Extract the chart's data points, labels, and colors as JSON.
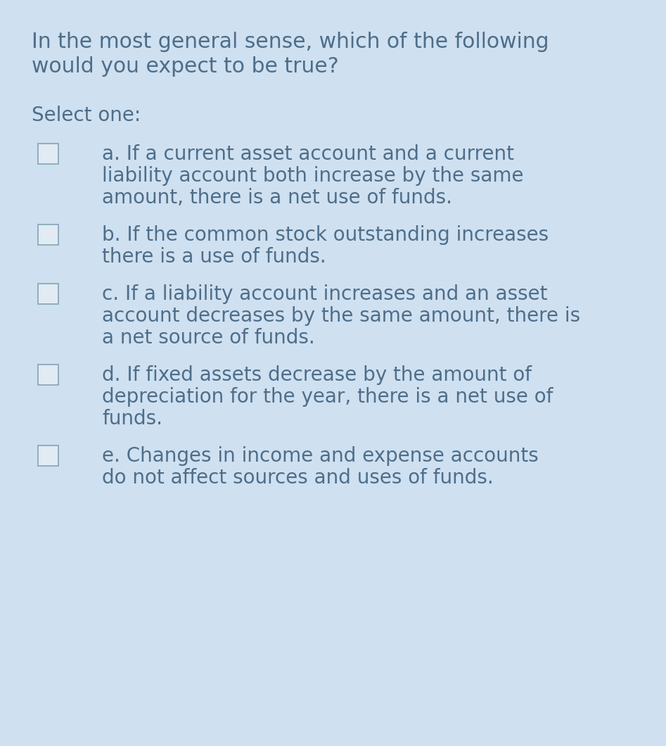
{
  "background_color": "#cfe0f0",
  "text_color": "#4d6e8a",
  "title_line1": "In the most general sense, which of the following",
  "title_line2": "would you expect to be true?",
  "select_label": "Select one:",
  "options": [
    {
      "lines": [
        "a. If a current asset account and a current",
        "liability account both increase by the same",
        "amount, there is a net use of funds."
      ]
    },
    {
      "lines": [
        "b. If the common stock outstanding increases",
        "there is a use of funds."
      ]
    },
    {
      "lines": [
        "c. If a liability account increases and an asset",
        "account decreases by the same amount, there is",
        "a net source of funds."
      ]
    },
    {
      "lines": [
        "d. If fixed assets decrease by the amount of",
        "depreciation for the year, there is a net use of",
        "funds."
      ]
    },
    {
      "lines": [
        "e. Changes in income and expense accounts",
        "do not affect sources and uses of funds."
      ]
    }
  ],
  "title_fontsize": 21.5,
  "select_fontsize": 20,
  "option_fontsize": 20,
  "checkbox_fill": "#e2eaf3",
  "checkbox_edge": "#8aaabb",
  "fig_width": 9.47,
  "fig_height": 10.6,
  "dpi": 100
}
